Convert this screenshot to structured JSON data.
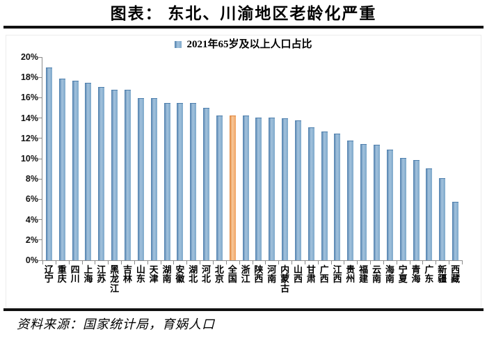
{
  "title": "图表：  东北、川渝地区老龄化严重",
  "legend": "2021年65岁及以上人口占比",
  "source": "资料来源：国家统计局，育娲人口",
  "colors": {
    "bar_edge": "#4d7eac",
    "bar_mid": "#a3c2dd",
    "bar_right": "#7fa9cb",
    "highlight_edge": "#df8339",
    "highlight_mid": "#f8c99b",
    "highlight_right": "#efa362",
    "axis": "#8a8a8a",
    "rule": "#111111"
  },
  "chart_data": {
    "type": "bar",
    "title": "2021年65岁及以上人口占比",
    "categories": [
      "辽宁",
      "重庆",
      "四川",
      "上海",
      "江苏",
      "黑龙江",
      "吉林",
      "山东",
      "天津",
      "湖南",
      "安徽",
      "湖北",
      "河北",
      "北京",
      "全国",
      "浙江",
      "陕西",
      "河南",
      "内蒙古",
      "山西",
      "甘肃",
      "广西",
      "江西",
      "贵州",
      "福建",
      "云南",
      "海南",
      "宁夏",
      "青海",
      "广东",
      "新疆",
      "西藏"
    ],
    "values": [
      18.9,
      17.8,
      17.6,
      17.4,
      17.0,
      16.7,
      16.7,
      15.9,
      15.9,
      15.4,
      15.4,
      15.4,
      14.9,
      14.2,
      14.2,
      14.2,
      14.0,
      14.0,
      13.9,
      13.7,
      13.0,
      12.6,
      12.4,
      11.7,
      11.4,
      11.3,
      10.8,
      10.0,
      9.8,
      9.0,
      8.0,
      5.7
    ],
    "unit": "%",
    "highlight_category": "全国",
    "highlight_index": 14,
    "xlabel": "",
    "ylabel": "",
    "ylim": [
      0,
      20
    ],
    "ytick_step": 2,
    "ytick_labels": [
      "0%",
      "2%",
      "4%",
      "6%",
      "8%",
      "10%",
      "12%",
      "14%",
      "16%",
      "18%",
      "20%"
    ],
    "grid": false,
    "legend_position": "top-center"
  }
}
